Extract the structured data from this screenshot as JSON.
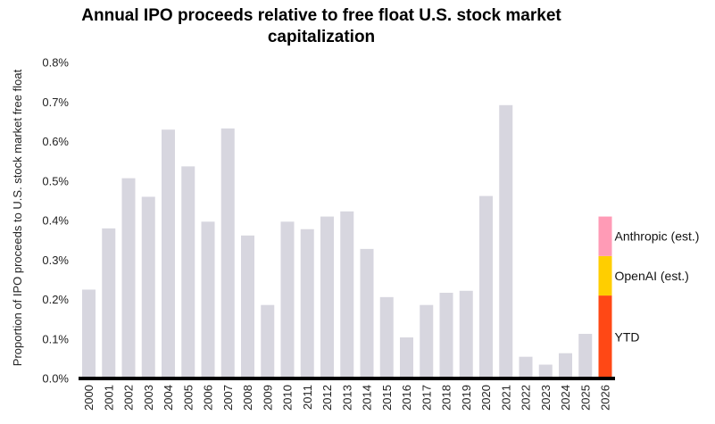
{
  "chart_data": {
    "type": "bar",
    "title": "Annual IPO proceeds relative to free float U.S. stock market capitalization",
    "ylabel": "Proportion of IPO proceeds to U.S. stock market free float",
    "xlabel": "",
    "ylim": [
      0,
      0.8
    ],
    "y_ticks": [
      "0.0%",
      "0.1%",
      "0.2%",
      "0.3%",
      "0.4%",
      "0.5%",
      "0.6%",
      "0.7%",
      "0.8%"
    ],
    "grid": false,
    "categories": [
      "2000",
      "2001",
      "2002",
      "2003",
      "2004",
      "2005",
      "2006",
      "2007",
      "2008",
      "2009",
      "2010",
      "2011",
      "2012",
      "2013",
      "2014",
      "2015",
      "2016",
      "2017",
      "2018",
      "2019",
      "2020",
      "2021",
      "2022",
      "2023",
      "2024",
      "2025",
      "2026"
    ],
    "values": [
      0.225,
      0.38,
      0.507,
      0.46,
      0.63,
      0.537,
      0.397,
      0.633,
      0.362,
      0.186,
      0.397,
      0.378,
      0.41,
      0.423,
      0.328,
      0.206,
      0.104,
      0.186,
      0.217,
      0.222,
      0.462,
      0.692,
      0.055,
      0.035,
      0.064,
      0.113,
      null
    ],
    "bar_color": "#d7d6df",
    "stacked_2026": [
      {
        "label": "YTD",
        "value": 0.21,
        "color": "#ff4815"
      },
      {
        "label": "OpenAI (est.)",
        "value": 0.1,
        "color": "#ffce00"
      },
      {
        "label": "Anthropic (est.)",
        "value": 0.1,
        "color": "#ff9bb6"
      }
    ]
  }
}
